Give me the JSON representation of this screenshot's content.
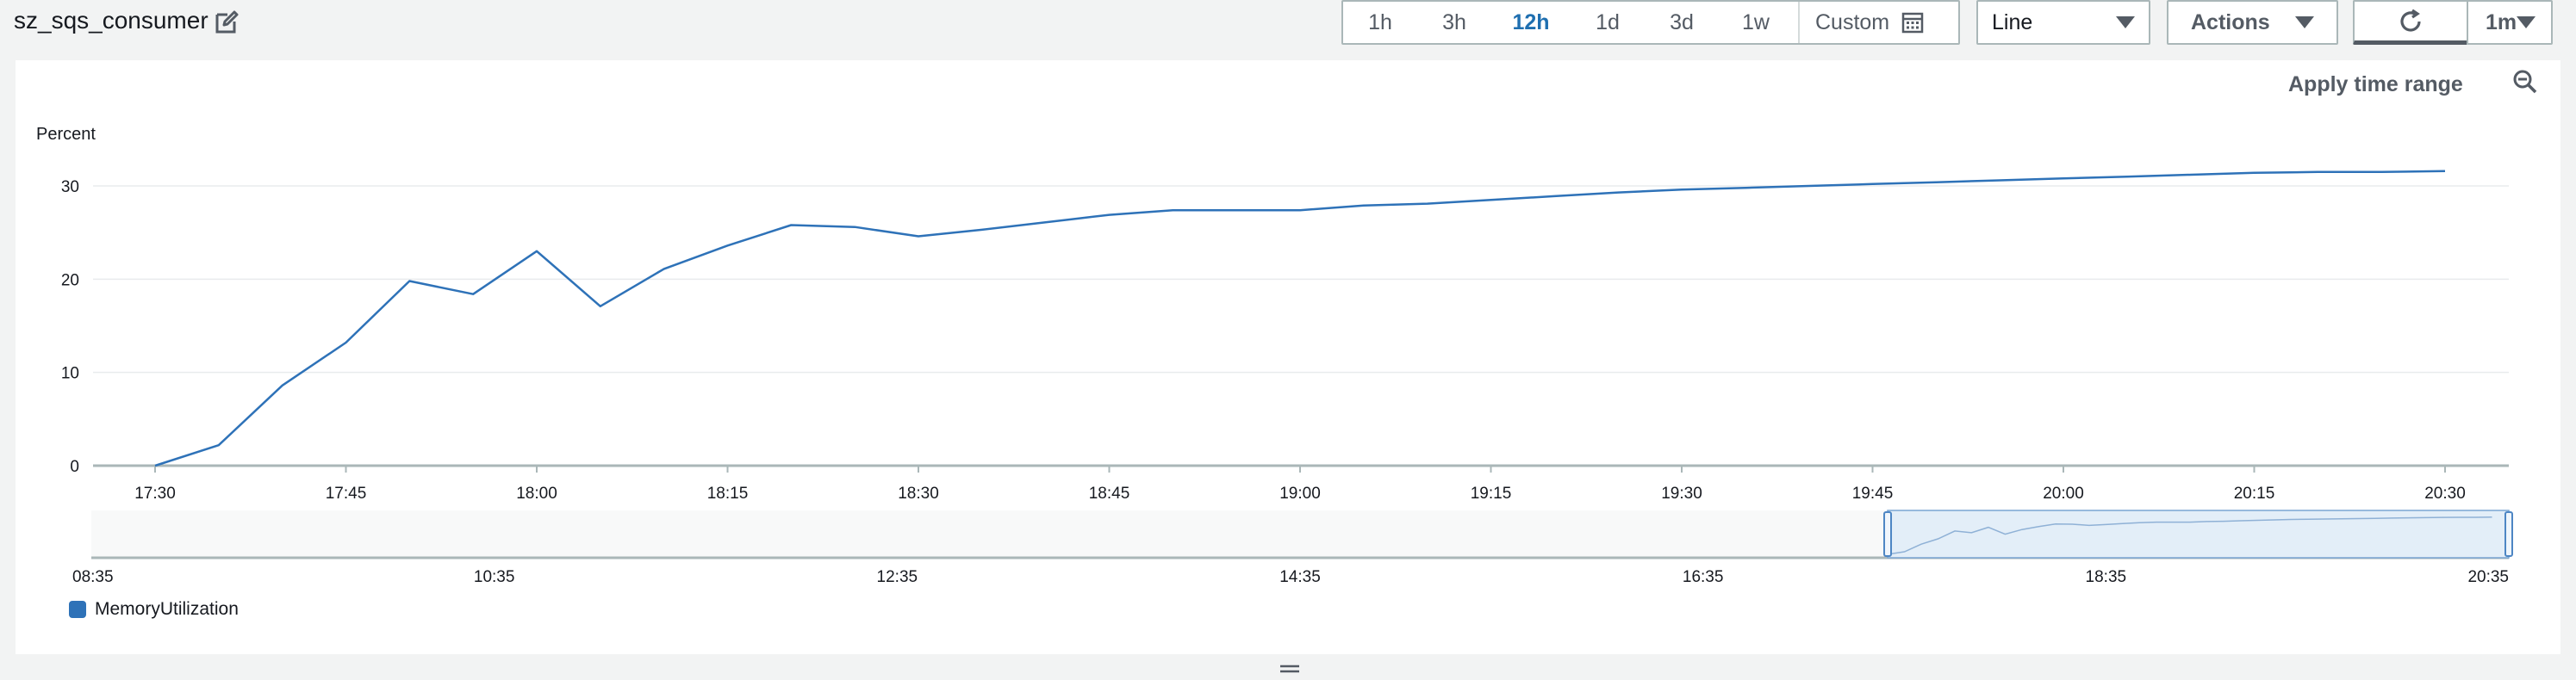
{
  "widget": {
    "title": "sz_sqs_consumer"
  },
  "toolbar": {
    "ranges": [
      "1h",
      "3h",
      "12h",
      "1d",
      "3d",
      "1w"
    ],
    "active_range": "12h",
    "custom_label": "Custom",
    "view_select": "Line",
    "actions_label": "Actions",
    "period_label": "1m"
  },
  "graph": {
    "apply_label": "Apply time range",
    "legend_label": "MemoryUtilization",
    "color": "#2e72b8"
  },
  "chart_data": {
    "type": "line",
    "ylabel": "Percent",
    "ylim": [
      0,
      30
    ],
    "yticks": [
      0,
      10,
      20,
      30
    ],
    "xticks": [
      "17:30",
      "17:45",
      "18:00",
      "18:15",
      "18:30",
      "18:45",
      "19:00",
      "19:15",
      "19:30",
      "19:45",
      "20:00",
      "20:15",
      "20:30"
    ],
    "series": [
      {
        "name": "MemoryUtilization",
        "x": [
          "17:30",
          "17:35",
          "17:40",
          "17:45",
          "17:50",
          "17:55",
          "18:00",
          "18:05",
          "18:10",
          "18:15",
          "18:20",
          "18:25",
          "18:30",
          "18:35",
          "18:40",
          "18:45",
          "18:50",
          "18:55",
          "19:00",
          "19:05",
          "19:10",
          "19:15",
          "19:20",
          "19:25",
          "19:30",
          "19:35",
          "19:40",
          "19:45",
          "19:50",
          "19:55",
          "20:00",
          "20:05",
          "20:10",
          "20:15",
          "20:20",
          "20:25",
          "20:30"
        ],
        "values": [
          0,
          2.2,
          8.6,
          13.2,
          19.8,
          18.4,
          23.0,
          17.1,
          21.1,
          23.6,
          25.8,
          25.6,
          24.6,
          25.3,
          26.1,
          26.9,
          27.4,
          27.4,
          27.4,
          27.9,
          28.1,
          28.5,
          28.9,
          29.3,
          29.6,
          29.8,
          30.0,
          30.2,
          30.4,
          30.6,
          30.8,
          31.0,
          31.2,
          31.4,
          31.5,
          31.5,
          31.6
        ]
      }
    ],
    "overview": {
      "xticks": [
        "08:35",
        "10:35",
        "12:35",
        "14:35",
        "16:35",
        "18:35",
        "20:35"
      ],
      "selection": [
        "17:30",
        "20:35"
      ]
    },
    "grid": true,
    "legend_position": "bottom-left"
  }
}
